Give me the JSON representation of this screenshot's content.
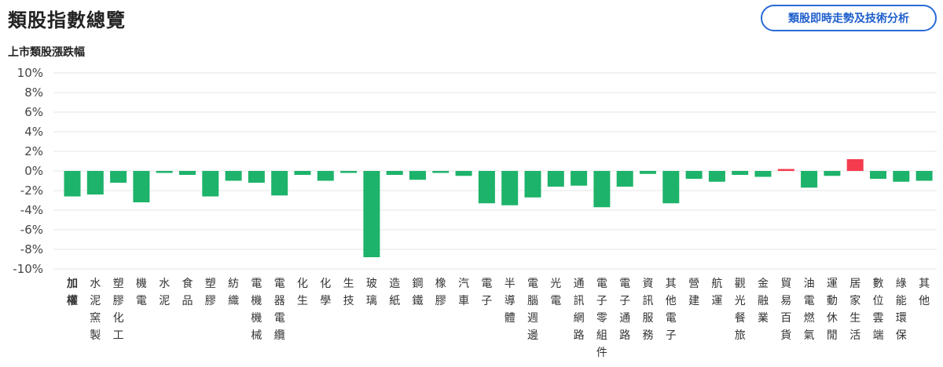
{
  "header": {
    "title": "類股指數總覽",
    "analysis_button_label": "類股即時走勢及技術分析"
  },
  "chart_data": {
    "type": "bar",
    "title": "上市類股漲跌幅",
    "ylim": [
      -10,
      10
    ],
    "yticks": [
      "10%",
      "8%",
      "6%",
      "4%",
      "2%",
      "0%",
      "-2%",
      "-4%",
      "-6%",
      "-8%",
      "-10%"
    ],
    "ytick_values": [
      10,
      8,
      6,
      4,
      2,
      0,
      -2,
      -4,
      -6,
      -8,
      -10
    ],
    "grid": true,
    "categories": [
      "加權",
      "水泥窯製",
      "塑膠化工",
      "機電",
      "水泥",
      "食品",
      "塑膠",
      "紡織",
      "電機機械",
      "電器電纜",
      "化生",
      "化學",
      "生技",
      "玻璃",
      "造紙",
      "鋼鐵",
      "橡膠",
      "汽車",
      "電子",
      "半導體",
      "電腦週邊",
      "光電",
      "通訊網路",
      "電子零組件",
      "電子通路",
      "資訊服務",
      "其他電子",
      "營建",
      "航運",
      "觀光餐旅",
      "金融業",
      "貿易百貨",
      "油電燃氣",
      "運動休閒",
      "居家生活",
      "數位雲端",
      "綠能環保",
      "其他"
    ],
    "values": [
      -2.6,
      -2.4,
      -1.2,
      -3.2,
      -0.2,
      -0.4,
      -2.6,
      -1.0,
      -1.2,
      -2.5,
      -0.4,
      -1.0,
      -0.2,
      -8.8,
      -0.4,
      -0.9,
      -0.2,
      -0.5,
      -3.3,
      -3.5,
      -2.7,
      -1.6,
      -1.5,
      -3.7,
      -1.6,
      -0.3,
      -3.3,
      -0.8,
      -1.1,
      -0.4,
      -0.6,
      0.2,
      -1.7,
      -0.5,
      1.2,
      -0.8,
      -1.1,
      -1.0
    ],
    "colors": {
      "down": "#1db36a",
      "up": "#f53c4e",
      "grid": "#e6e6e6"
    }
  }
}
